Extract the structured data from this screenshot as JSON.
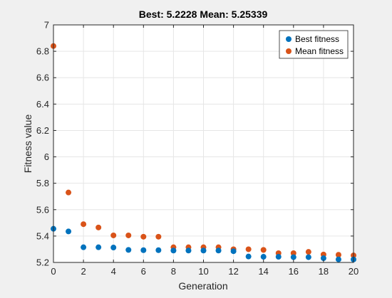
{
  "chart_data": {
    "type": "scatter",
    "title": "Best: 5.2228 Mean: 5.25339",
    "xlabel": "Generation",
    "ylabel": "Fitness value",
    "xlim": [
      0,
      20
    ],
    "ylim": [
      5.2,
      7
    ],
    "xticks": [
      "0",
      "2",
      "4",
      "6",
      "8",
      "10",
      "12",
      "14",
      "16",
      "18",
      "20"
    ],
    "yticks": [
      "5.2",
      "5.4",
      "5.6",
      "5.8",
      "6",
      "6.2",
      "6.4",
      "6.6",
      "6.8",
      "7"
    ],
    "grid": true,
    "legend_position": "top-right",
    "x": [
      0,
      1,
      2,
      3,
      4,
      5,
      6,
      7,
      8,
      9,
      10,
      11,
      12,
      13,
      14,
      15,
      16,
      17,
      18,
      19,
      20
    ],
    "series": [
      {
        "name": "Best fitness",
        "color": "#0072bd",
        "values": [
          5.455,
          5.435,
          5.315,
          5.315,
          5.313,
          5.295,
          5.293,
          5.293,
          5.29,
          5.29,
          5.29,
          5.29,
          5.285,
          5.245,
          5.243,
          5.243,
          5.24,
          5.24,
          5.232,
          5.223,
          5.2228
        ]
      },
      {
        "name": "Mean fitness",
        "color": "#d95319",
        "values": [
          6.84,
          5.73,
          5.49,
          5.465,
          5.405,
          5.405,
          5.395,
          5.395,
          5.315,
          5.315,
          5.315,
          5.315,
          5.3,
          5.3,
          5.295,
          5.27,
          5.27,
          5.28,
          5.26,
          5.258,
          5.25339
        ]
      }
    ]
  }
}
